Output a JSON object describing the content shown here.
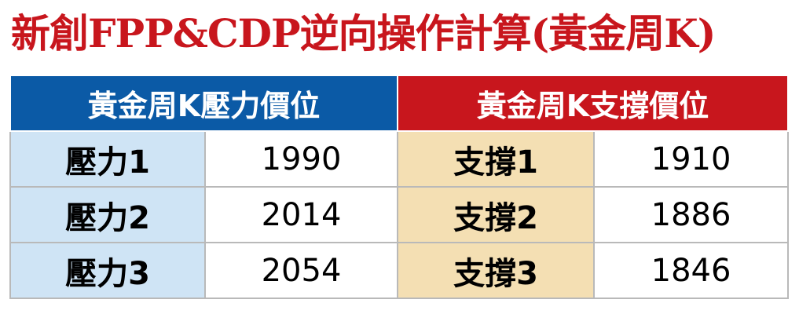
{
  "title": "新創FPP&CDP逆向操作計算(黃金周K)",
  "table": {
    "headers": [
      "黃金周K壓力價位",
      "黃金周K支撐價位"
    ],
    "rows": [
      [
        "壓力1",
        1990,
        "支撐1",
        1910
      ],
      [
        "壓力2",
        2014,
        "支撐2",
        1886
      ],
      [
        "壓力3",
        2054,
        "支撐3",
        1846
      ]
    ]
  }
}
